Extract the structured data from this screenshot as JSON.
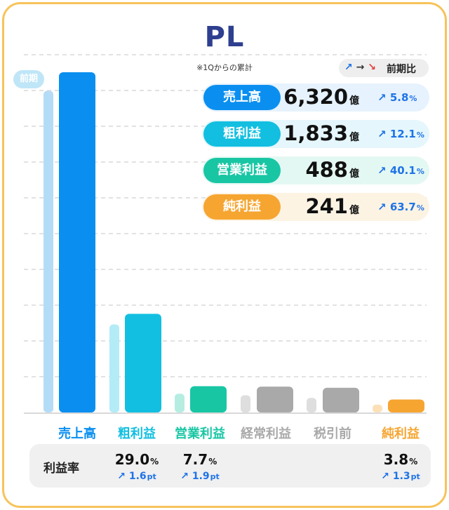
{
  "title": "PL",
  "subtitle": "※1Qからの累計",
  "legend": {
    "arrows": [
      "↗",
      "→",
      "↘"
    ],
    "label": "前期比"
  },
  "prev_badge": "前期",
  "colors": {
    "売上高": "#0a8ff0",
    "粗利益": "#12bfe0",
    "営業利益": "#18c6a4",
    "経常利益": "#a9a9a9",
    "税引前": "#a9a9a9",
    "純利益": "#f6a531",
    "label_gray": "#a9a9a9",
    "growth": "#1e73e8"
  },
  "kpis": [
    {
      "label": "売上高",
      "value": "6,320",
      "unit": "億",
      "growth": "5.8",
      "growth_unit": "%",
      "color": "#0a8ff0",
      "bg": "#e6f2fd"
    },
    {
      "label": "粗利益",
      "value": "1,833",
      "unit": "億",
      "growth": "12.1",
      "growth_unit": "%",
      "color": "#12bfe0",
      "bg": "#e5f7fc"
    },
    {
      "label": "営業利益",
      "value": "488",
      "unit": "億",
      "growth": "40.1",
      "growth_unit": "%",
      "color": "#18c6a4",
      "bg": "#e4f8f3"
    },
    {
      "label": "純利益",
      "value": "241",
      "unit": "億",
      "growth": "63.7",
      "growth_unit": "%",
      "color": "#f6a531",
      "bg": "#fdf3e3"
    }
  ],
  "chart_data": {
    "type": "bar",
    "categories": [
      "売上高",
      "粗利益",
      "営業利益",
      "経常利益",
      "税引前",
      "純利益"
    ],
    "series": [
      {
        "name": "前期",
        "values": [
          5974,
          1635,
          348,
          320,
          270,
          147
        ]
      },
      {
        "values": [
          6320,
          1833,
          488,
          480,
          460,
          241
        ]
      }
    ],
    "ylim": [
      0,
      6500
    ],
    "grid": true
  },
  "margin": {
    "title": "利益率",
    "items": [
      {
        "category": "粗利益",
        "value": "29.0",
        "unit": "%",
        "delta": "1.6",
        "delta_unit": "pt"
      },
      {
        "category": "営業利益",
        "value": "7.7",
        "unit": "%",
        "delta": "1.9",
        "delta_unit": "pt"
      },
      {
        "category": "純利益",
        "value": "3.8",
        "unit": "%",
        "delta": "1.3",
        "delta_unit": "pt"
      }
    ]
  }
}
